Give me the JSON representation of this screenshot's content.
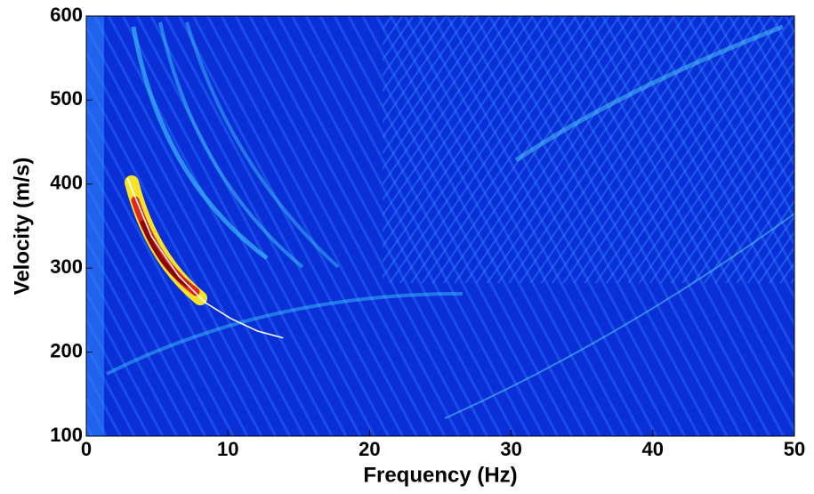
{
  "chart_data": {
    "type": "line",
    "xlabel": "Frequency (Hz)",
    "ylabel": "Velocity (m/s)",
    "x": [
      2.9,
      4.6,
      6.5,
      8.4,
      10.2,
      12.1,
      13.9
    ],
    "series": [
      {
        "color": "#ffffff",
        "values": [
          407,
          338,
          291,
          259,
          240,
          225,
          217
        ]
      }
    ],
    "xlim": [
      0,
      50
    ],
    "xticks": [
      0,
      10,
      20,
      30,
      40,
      50
    ],
    "ylim": [
      100,
      600
    ],
    "yticks": [
      100,
      200,
      300,
      400,
      500,
      600
    ]
  }
}
